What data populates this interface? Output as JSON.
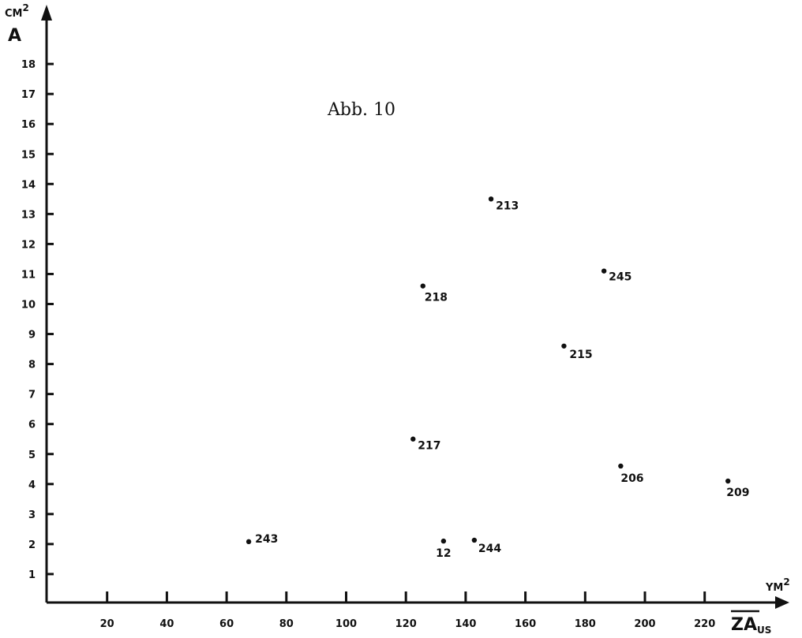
{
  "chart_data": {
    "type": "scatter",
    "title": "Abb. 10",
    "xlabel": "ZA",
    "xlabel_subscript": "US",
    "x_unit": "YM",
    "x_unit_sup": "2",
    "ylabel": "A",
    "y_unit": "CM",
    "y_unit_sup": "2",
    "xlim": [
      0,
      240
    ],
    "ylim": [
      0,
      19
    ],
    "x_ticks": [
      20,
      40,
      60,
      80,
      100,
      120,
      140,
      160,
      180,
      200,
      220
    ],
    "y_ticks": [
      1,
      2,
      3,
      4,
      5,
      6,
      7,
      8,
      9,
      10,
      11,
      12,
      13,
      14,
      15,
      16,
      17,
      18
    ],
    "grid": false,
    "points": [
      {
        "label": "243",
        "x": 67.4,
        "y": 2.08
      },
      {
        "label": "12",
        "x": 132.6,
        "y": 2.1
      },
      {
        "label": "244",
        "x": 142.9,
        "y": 2.13
      },
      {
        "label": "217",
        "x": 122.4,
        "y": 5.5
      },
      {
        "label": "206",
        "x": 191.9,
        "y": 4.6
      },
      {
        "label": "209",
        "x": 227.8,
        "y": 4.1
      },
      {
        "label": "215",
        "x": 172.9,
        "y": 8.6
      },
      {
        "label": "218",
        "x": 125.7,
        "y": 10.6
      },
      {
        "label": "245",
        "x": 186.3,
        "y": 11.1
      },
      {
        "label": "213",
        "x": 148.5,
        "y": 13.5
      }
    ]
  }
}
